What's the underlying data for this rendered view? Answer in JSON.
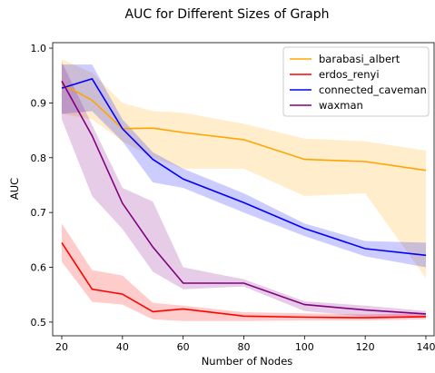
{
  "chart_data": {
    "type": "line",
    "title": "AUC for Different Sizes of Graph",
    "xlabel": "Number of Nodes",
    "ylabel": "AUC",
    "xlim": [
      17,
      143
    ],
    "ylim": [
      0.475,
      1.01
    ],
    "xticks": [
      20,
      40,
      60,
      80,
      100,
      120,
      140
    ],
    "yticks": [
      0.5,
      0.6,
      0.7,
      0.8,
      0.9,
      1.0
    ],
    "ytick_labels": [
      "0.5",
      "0.6",
      "0.7",
      "0.8",
      "0.9",
      "1.0"
    ],
    "grid": false,
    "legend_position": "top-right",
    "x": [
      20,
      30,
      40,
      50,
      60,
      80,
      100,
      120,
      140
    ],
    "series": [
      {
        "name": "barabasi_albert",
        "color": "#ffa500",
        "values": [
          0.935,
          0.905,
          0.853,
          0.854,
          0.846,
          0.833,
          0.797,
          0.793,
          0.777
        ],
        "lower": [
          0.88,
          0.87,
          0.83,
          0.8,
          0.78,
          0.78,
          0.73,
          0.735,
          0.58
        ],
        "upper": [
          0.98,
          0.955,
          0.9,
          0.885,
          0.882,
          0.862,
          0.835,
          0.83,
          0.813
        ]
      },
      {
        "name": "erdos_renyi",
        "color": "#ff0000",
        "values": [
          0.645,
          0.56,
          0.551,
          0.519,
          0.524,
          0.511,
          0.509,
          0.508,
          0.51
        ],
        "lower": [
          0.61,
          0.537,
          0.532,
          0.505,
          0.502,
          0.502,
          0.503,
          0.503,
          0.505
        ],
        "upper": [
          0.68,
          0.595,
          0.585,
          0.535,
          0.53,
          0.518,
          0.516,
          0.514,
          0.516
        ]
      },
      {
        "name": "connected_caveman",
        "color": "#0000ff",
        "values": [
          0.927,
          0.944,
          0.853,
          0.797,
          0.761,
          0.718,
          0.671,
          0.634,
          0.622
        ],
        "lower": [
          0.88,
          0.885,
          0.83,
          0.755,
          0.745,
          0.7,
          0.657,
          0.62,
          0.6
        ],
        "upper": [
          0.97,
          0.97,
          0.87,
          0.81,
          0.78,
          0.735,
          0.68,
          0.648,
          0.645
        ]
      },
      {
        "name": "waxman",
        "color": "#800080",
        "values": [
          0.94,
          0.84,
          0.717,
          0.637,
          0.571,
          0.571,
          0.532,
          0.522,
          0.515
        ],
        "lower": [
          0.87,
          0.73,
          0.67,
          0.592,
          0.56,
          0.565,
          0.52,
          0.51,
          0.51
        ],
        "upper": [
          0.975,
          0.86,
          0.745,
          0.72,
          0.6,
          0.578,
          0.538,
          0.53,
          0.52
        ]
      }
    ]
  }
}
